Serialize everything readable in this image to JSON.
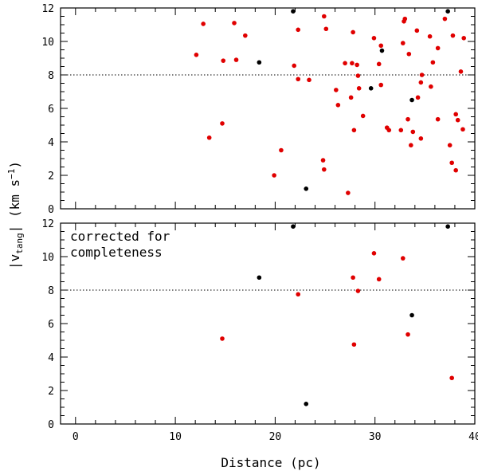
{
  "chart_data": [
    {
      "type": "scatter",
      "panel": "top",
      "annotation": "",
      "xlim": [
        -1.5,
        40
      ],
      "ylim": [
        0,
        12
      ],
      "xticks": [
        0,
        10,
        20,
        30,
        40
      ],
      "yticks": [
        0,
        2,
        4,
        6,
        8,
        10,
        12
      ],
      "hline": 8,
      "show_x_tick_labels": false,
      "series": [
        {
          "color": "#e00000",
          "points": [
            [
              12.8,
              11.05
            ],
            [
              15.9,
              11.1
            ],
            [
              17.0,
              10.35
            ],
            [
              12.1,
              9.2
            ],
            [
              14.8,
              8.85
            ],
            [
              16.1,
              8.9
            ],
            [
              14.7,
              5.1
            ],
            [
              13.4,
              4.25
            ],
            [
              22.3,
              10.7
            ],
            [
              21.9,
              8.55
            ],
            [
              22.3,
              7.75
            ],
            [
              23.4,
              7.7
            ],
            [
              24.9,
              11.5
            ],
            [
              25.1,
              10.75
            ],
            [
              20.6,
              3.5
            ],
            [
              19.9,
              2.0
            ],
            [
              24.8,
              2.9
            ],
            [
              24.9,
              2.35
            ],
            [
              26.1,
              7.1
            ],
            [
              26.3,
              6.2
            ],
            [
              27.0,
              8.7
            ],
            [
              27.7,
              8.7
            ],
            [
              27.8,
              10.55
            ],
            [
              28.2,
              8.6
            ],
            [
              28.3,
              7.95
            ],
            [
              28.4,
              7.2
            ],
            [
              27.6,
              6.65
            ],
            [
              28.8,
              5.55
            ],
            [
              27.9,
              4.7
            ],
            [
              27.3,
              0.95
            ],
            [
              29.9,
              10.2
            ],
            [
              30.6,
              9.75
            ],
            [
              30.4,
              8.65
            ],
            [
              30.6,
              7.4
            ],
            [
              31.2,
              4.85
            ],
            [
              31.4,
              4.7
            ],
            [
              32.9,
              11.2
            ],
            [
              33.0,
              11.35
            ],
            [
              32.8,
              9.9
            ],
            [
              33.4,
              9.25
            ],
            [
              32.6,
              4.7
            ],
            [
              33.3,
              5.35
            ],
            [
              33.6,
              3.8
            ],
            [
              33.8,
              4.6
            ],
            [
              34.2,
              10.65
            ],
            [
              34.3,
              6.65
            ],
            [
              34.6,
              7.55
            ],
            [
              34.7,
              8.0
            ],
            [
              34.6,
              4.2
            ],
            [
              35.5,
              10.3
            ],
            [
              35.8,
              8.75
            ],
            [
              35.6,
              7.3
            ],
            [
              36.3,
              9.6
            ],
            [
              36.3,
              5.35
            ],
            [
              37.0,
              11.35
            ],
            [
              37.8,
              10.35
            ],
            [
              37.5,
              3.8
            ],
            [
              37.7,
              2.75
            ],
            [
              38.1,
              5.65
            ],
            [
              38.3,
              5.3
            ],
            [
              38.1,
              2.3
            ],
            [
              38.6,
              8.2
            ],
            [
              38.9,
              10.2
            ],
            [
              38.8,
              4.75
            ]
          ]
        },
        {
          "color": "#000000",
          "points": [
            [
              21.8,
              11.8
            ],
            [
              37.3,
              11.8
            ],
            [
              18.4,
              8.75
            ],
            [
              30.7,
              9.45
            ],
            [
              29.6,
              7.2
            ],
            [
              33.7,
              6.5
            ],
            [
              23.1,
              1.2
            ]
          ]
        }
      ]
    },
    {
      "type": "scatter",
      "panel": "bottom",
      "annotation": "corrected for\ncompleteness",
      "xlim": [
        -1.5,
        40
      ],
      "ylim": [
        0,
        12
      ],
      "xticks": [
        0,
        10,
        20,
        30,
        40
      ],
      "yticks": [
        0,
        2,
        4,
        6,
        8,
        10,
        12
      ],
      "hline": 8,
      "show_x_tick_labels": true,
      "series": [
        {
          "color": "#e00000",
          "points": [
            [
              29.9,
              10.2
            ],
            [
              32.8,
              9.9
            ],
            [
              27.8,
              8.75
            ],
            [
              30.4,
              8.65
            ],
            [
              28.3,
              7.95
            ],
            [
              22.3,
              7.75
            ],
            [
              14.7,
              5.1
            ],
            [
              33.3,
              5.35
            ],
            [
              27.9,
              4.75
            ],
            [
              37.7,
              2.75
            ]
          ]
        },
        {
          "color": "#000000",
          "points": [
            [
              21.8,
              11.8
            ],
            [
              37.3,
              11.8
            ],
            [
              18.4,
              8.75
            ],
            [
              33.7,
              6.5
            ],
            [
              23.1,
              1.2
            ]
          ]
        }
      ]
    }
  ],
  "labels": {
    "xlabel": "Distance (pc)",
    "ylabel": "|vₜₐₙg| (km s⁻¹)"
  }
}
